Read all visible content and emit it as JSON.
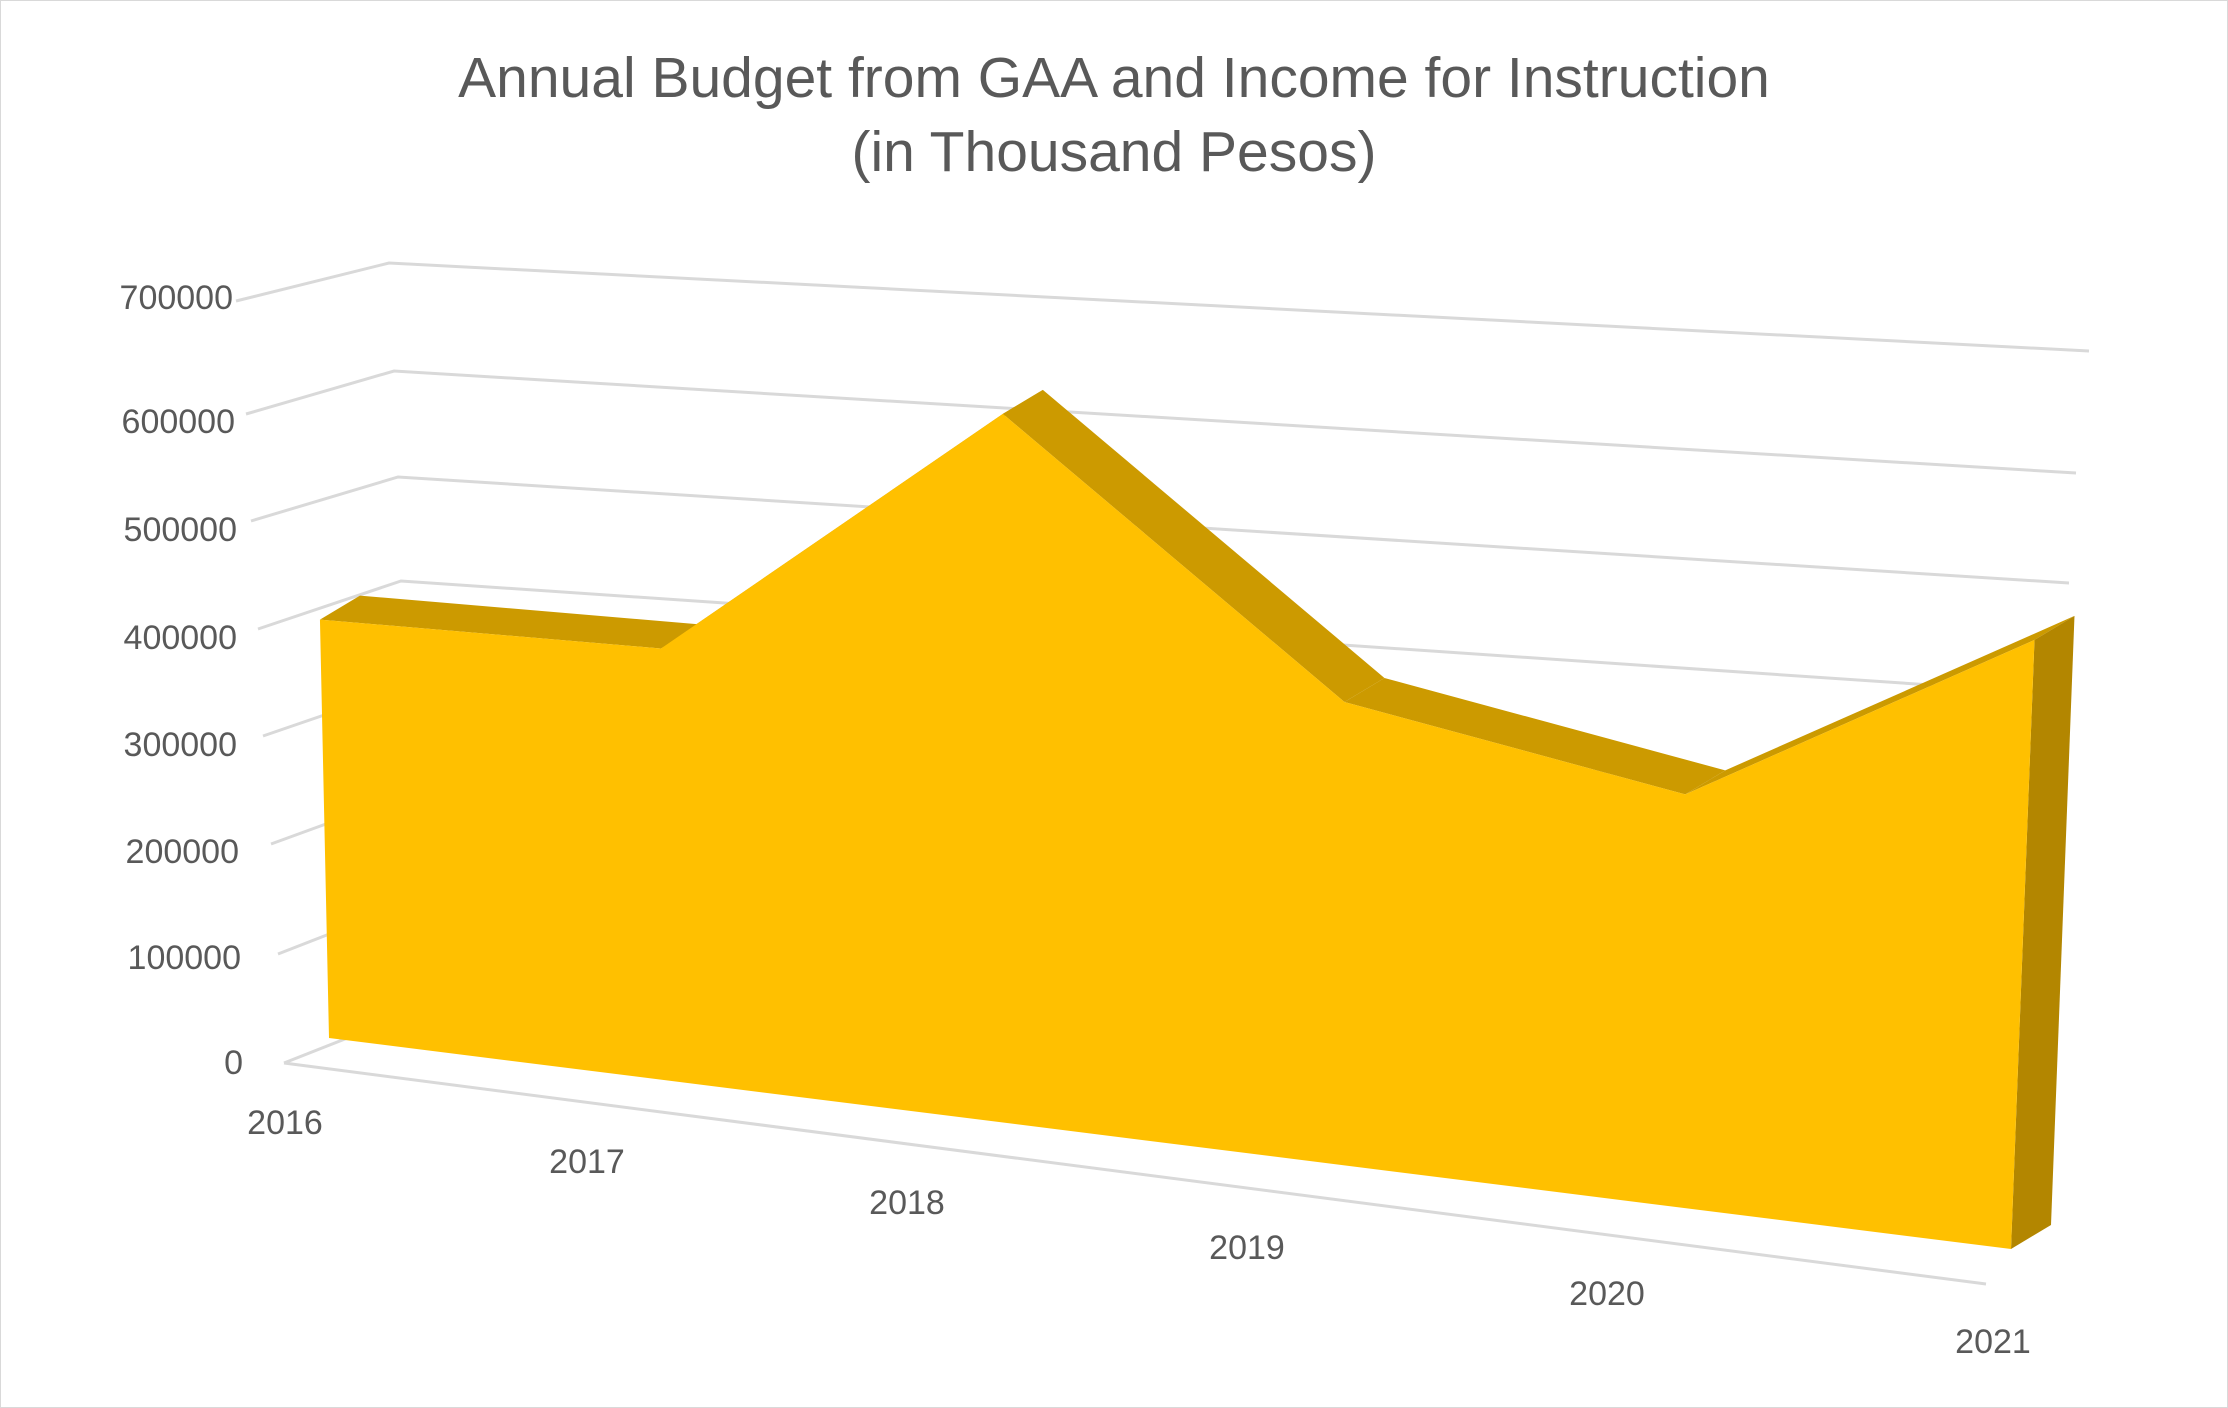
{
  "chart_data": {
    "type": "area",
    "title": "Annual Budget from GAA and Income for Instruction",
    "subtitle": "(in Thousand Pesos)",
    "categories": [
      "2016",
      "2017",
      "2018",
      "2019",
      "2020",
      "2021"
    ],
    "series": [
      {
        "values": [
          352000,
          368000,
          612000,
          405000,
          366000,
          548000
        ]
      }
    ],
    "y_ticks": [
      "0",
      "100000",
      "200000",
      "300000",
      "400000",
      "500000",
      "600000",
      "700000"
    ],
    "ylim": [
      0,
      700000
    ],
    "grid": true,
    "legend": "none",
    "style": "3d",
    "colors": {
      "front": "#FFC000",
      "top": "#CC9A00",
      "side": "#B38600",
      "grid": "#d9d9d9",
      "text": "#595959"
    }
  }
}
